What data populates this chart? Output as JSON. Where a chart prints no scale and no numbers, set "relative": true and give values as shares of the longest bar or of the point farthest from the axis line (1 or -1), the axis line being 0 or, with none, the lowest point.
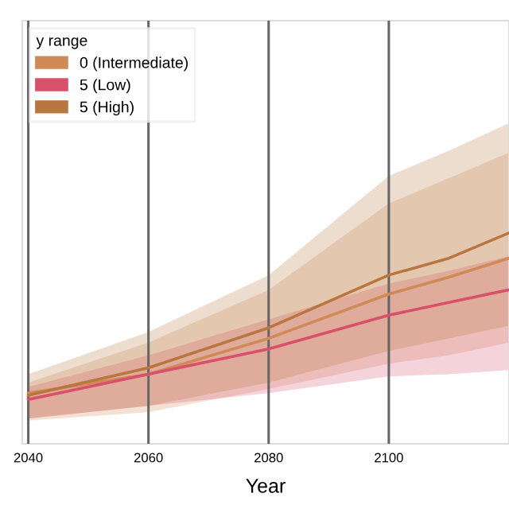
{
  "chart_data": {
    "type": "line",
    "relative": true,
    "xlabel": "Year",
    "legend_title": "y range",
    "legend": "top left",
    "grid": "x",
    "x": [
      2040,
      2060,
      2080,
      2100,
      2110,
      2120
    ],
    "xlim": [
      2039,
      2120
    ],
    "xticks": [
      2040,
      2060,
      2080,
      2100
    ],
    "series": [
      {
        "name": "0 (Intermediate)",
        "color": "#d08a55",
        "values": [
          0.24,
          0.33,
          0.5,
          0.71,
          0.79,
          0.88
        ],
        "lower": [
          0.11,
          0.15,
          0.26,
          0.38,
          0.42,
          0.48
        ],
        "upper": [
          0.29,
          0.48,
          0.73,
          1.14,
          1.26,
          1.38
        ]
      },
      {
        "name": "5 (Low)",
        "color": "#d9506a",
        "values": [
          0.21,
          0.33,
          0.45,
          0.61,
          0.67,
          0.73
        ],
        "lower": [
          0.12,
          0.18,
          0.24,
          0.32,
          0.33,
          0.35
        ],
        "upper": [
          0.27,
          0.42,
          0.59,
          0.76,
          0.82,
          0.89
        ]
      },
      {
        "name": "5 (High)",
        "color": "#b9773f",
        "values": [
          0.23,
          0.36,
          0.55,
          0.8,
          0.88,
          1.0
        ],
        "lower": [
          0.12,
          0.18,
          0.29,
          0.44,
          0.5,
          0.56
        ],
        "upper": [
          0.33,
          0.53,
          0.8,
          1.27,
          1.39,
          1.52
        ]
      }
    ]
  }
}
